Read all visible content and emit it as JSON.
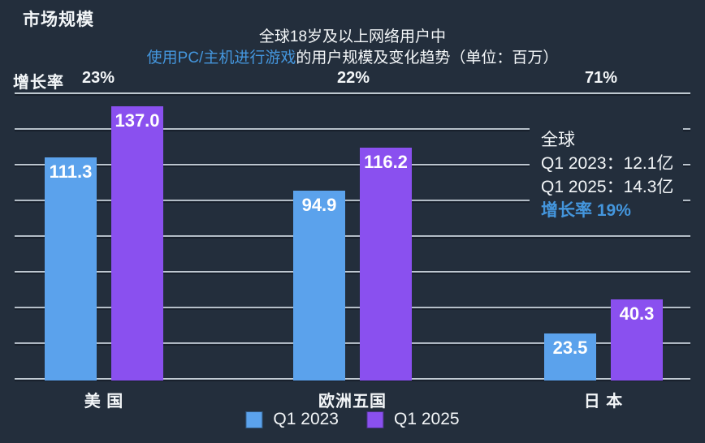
{
  "page": {
    "title": "市场规模",
    "background": "#232e3c"
  },
  "subtitle": {
    "line1": "全球18岁及以上网络用户中",
    "line2_highlight": "使用PC/主机进行游戏",
    "line2_rest": "的用户规模及变化趋势（单位：百万）"
  },
  "growth_row": {
    "label": "增长率"
  },
  "annotation": {
    "line1": "全球",
    "line2": "Q1 2023：12.1亿",
    "line3": "Q1 2025：14.3亿",
    "line4_label": "增长率",
    "line4_value": "19%"
  },
  "legend": {
    "items": [
      {
        "label": "Q1 2023",
        "color": "#5ba2ec"
      },
      {
        "label": "Q1 2025",
        "color": "#8a50ef"
      }
    ]
  },
  "colors": {
    "background": "#232e3c",
    "text": "#f3f6f8",
    "accent_blue_text": "#4496dd",
    "bar_blue": "#5ba2ec",
    "bar_purple": "#8a50ef",
    "gridline": "#a9b4bf"
  },
  "chart_data": {
    "type": "bar",
    "title": "全球18岁及以上网络用户中使用PC/主机进行游戏的用户规模及变化趋势",
    "unit": "百万",
    "categories": [
      "美 国",
      "欧洲五国",
      "日 本"
    ],
    "series": [
      {
        "name": "Q1 2023",
        "color": "#5ba2ec",
        "values": [
          111.3,
          94.9,
          23.5
        ]
      },
      {
        "name": "Q1 2025",
        "color": "#8a50ef",
        "values": [
          137.0,
          116.2,
          40.3
        ]
      }
    ],
    "growth_rates": [
      "23%",
      "22%",
      "71%"
    ],
    "ylim": [
      0,
      142
    ],
    "grid": true,
    "gridline_count": 9,
    "legend_position": "bottom",
    "annotation_global": {
      "q1_2023": "12.1亿",
      "q1_2025": "14.3亿",
      "growth": "19%"
    }
  }
}
